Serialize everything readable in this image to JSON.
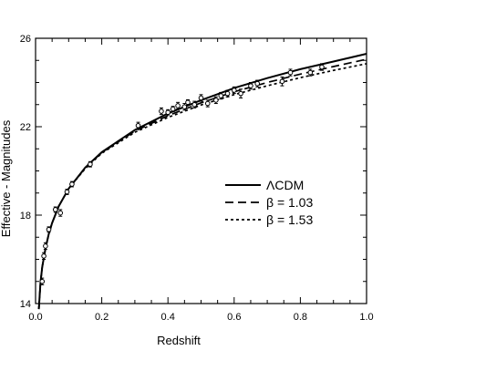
{
  "chart_data": {
    "type": "scatter",
    "title": "",
    "xlabel": "Redshift",
    "ylabel": "Effective - Magnitudes",
    "xlim": [
      0.0,
      1.0
    ],
    "ylim": [
      14,
      26
    ],
    "x_ticks": [
      0.0,
      0.2,
      0.4,
      0.6,
      0.8,
      1.0
    ],
    "x_tick_labels": [
      "0.0",
      "0.2",
      "0.4",
      "0.6",
      "0.8",
      "1.0"
    ],
    "y_ticks": [
      14,
      18,
      22,
      26
    ],
    "y_tick_labels": [
      "14",
      "18",
      "22",
      "26"
    ],
    "grid": false,
    "legend_position": "center-right",
    "legend": [
      {
        "label": "ΛCDM",
        "style": "solid"
      },
      {
        "label": "β = 1.03",
        "style": "dashed"
      },
      {
        "label": "β = 1.53",
        "style": "dotted"
      }
    ],
    "series": [
      {
        "name": "ΛCDM",
        "style": "solid",
        "x": [
          0.01,
          0.015,
          0.02,
          0.03,
          0.04,
          0.05,
          0.07,
          0.1,
          0.15,
          0.2,
          0.3,
          0.4,
          0.5,
          0.6,
          0.7,
          0.8,
          0.9,
          1.0
        ],
        "y": [
          13.75,
          14.95,
          15.65,
          16.5,
          17.15,
          17.65,
          18.4,
          19.2,
          20.15,
          20.85,
          21.85,
          22.6,
          23.2,
          23.75,
          24.2,
          24.6,
          24.95,
          25.3
        ]
      },
      {
        "name": "β = 1.03",
        "style": "dashed",
        "x": [
          0.01,
          0.015,
          0.02,
          0.03,
          0.04,
          0.05,
          0.07,
          0.1,
          0.15,
          0.2,
          0.3,
          0.4,
          0.5,
          0.6,
          0.7,
          0.8,
          0.9,
          1.0
        ],
        "y": [
          13.75,
          14.95,
          15.65,
          16.5,
          17.15,
          17.65,
          18.4,
          19.2,
          20.13,
          20.83,
          21.8,
          22.5,
          23.08,
          23.58,
          24.0,
          24.38,
          24.72,
          25.05
        ]
      },
      {
        "name": "β = 1.53",
        "style": "dotted",
        "x": [
          0.01,
          0.015,
          0.02,
          0.03,
          0.04,
          0.05,
          0.07,
          0.1,
          0.15,
          0.2,
          0.3,
          0.4,
          0.5,
          0.6,
          0.7,
          0.8,
          0.9,
          1.0
        ],
        "y": [
          13.75,
          14.95,
          15.65,
          16.5,
          17.15,
          17.65,
          18.4,
          19.2,
          20.1,
          20.8,
          21.75,
          22.42,
          22.98,
          23.45,
          23.85,
          24.22,
          24.55,
          24.85
        ]
      }
    ],
    "points": [
      {
        "x": 0.02,
        "y": 15.0,
        "err": 0.15
      },
      {
        "x": 0.025,
        "y": 16.15,
        "err": 0.15
      },
      {
        "x": 0.03,
        "y": 16.6,
        "err": 0.15
      },
      {
        "x": 0.04,
        "y": 17.35,
        "err": 0.12
      },
      {
        "x": 0.06,
        "y": 18.25,
        "err": 0.12
      },
      {
        "x": 0.075,
        "y": 18.1,
        "err": 0.15
      },
      {
        "x": 0.095,
        "y": 19.05,
        "err": 0.12
      },
      {
        "x": 0.11,
        "y": 19.4,
        "err": 0.12
      },
      {
        "x": 0.165,
        "y": 20.3,
        "err": 0.12
      },
      {
        "x": 0.31,
        "y": 22.05,
        "err": 0.15
      },
      {
        "x": 0.38,
        "y": 22.7,
        "err": 0.15
      },
      {
        "x": 0.4,
        "y": 22.65,
        "err": 0.12
      },
      {
        "x": 0.415,
        "y": 22.8,
        "err": 0.12
      },
      {
        "x": 0.43,
        "y": 22.95,
        "err": 0.15
      },
      {
        "x": 0.45,
        "y": 22.9,
        "err": 0.15
      },
      {
        "x": 0.46,
        "y": 23.1,
        "err": 0.12
      },
      {
        "x": 0.48,
        "y": 23.0,
        "err": 0.15
      },
      {
        "x": 0.5,
        "y": 23.3,
        "err": 0.15
      },
      {
        "x": 0.52,
        "y": 23.05,
        "err": 0.15
      },
      {
        "x": 0.545,
        "y": 23.2,
        "err": 0.15
      },
      {
        "x": 0.56,
        "y": 23.4,
        "err": 0.15
      },
      {
        "x": 0.58,
        "y": 23.5,
        "err": 0.15
      },
      {
        "x": 0.6,
        "y": 23.65,
        "err": 0.15
      },
      {
        "x": 0.62,
        "y": 23.5,
        "err": 0.2
      },
      {
        "x": 0.65,
        "y": 23.85,
        "err": 0.15
      },
      {
        "x": 0.67,
        "y": 23.95,
        "err": 0.15
      },
      {
        "x": 0.745,
        "y": 24.05,
        "err": 0.2
      },
      {
        "x": 0.77,
        "y": 24.45,
        "err": 0.15
      },
      {
        "x": 0.83,
        "y": 24.45,
        "err": 0.15
      },
      {
        "x": 0.865,
        "y": 24.7,
        "err": 0.15
      }
    ]
  }
}
